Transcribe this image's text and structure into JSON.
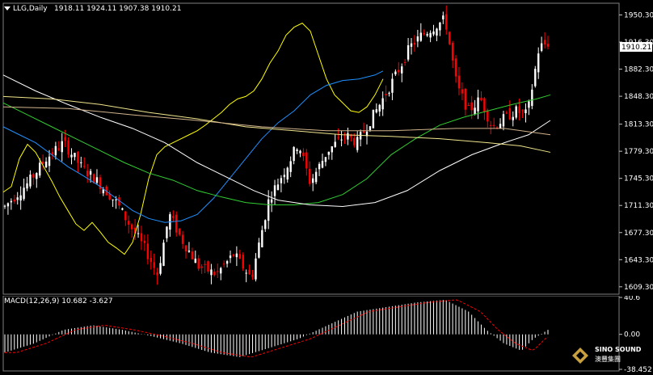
{
  "header": {
    "symbol": "LLG,Daily",
    "ohlc": "1918.11 1924.11 1907.38 1910.21"
  },
  "macd_header": {
    "label": "MACD(12,26,9) 10.682 -3.627"
  },
  "colors": {
    "background": "#000000",
    "up_candle": "#ffffff",
    "down_candle": "#ff0000",
    "ma_yellow": "#ffff00",
    "ma_blue": "#1e90ff",
    "ma_green": "#32cd32",
    "ma_white": "#ffffff",
    "ma_beige": "#f0e68c",
    "macd_signal": "#ff0000",
    "last_price_bg": "#ffffff"
  },
  "logo": {
    "text_top": "SINO SOUND",
    "text_bottom": "澳豐集團"
  },
  "chart_data": [
    {
      "type": "candlestick",
      "title": "LLG,Daily",
      "ylim": [
        1600,
        1965
      ],
      "y_ticks": [
        "1950.30",
        "1916.30",
        "1882.30",
        "1848.30",
        "1813.30",
        "1779.30",
        "1745.30",
        "1711.30",
        "1677.30",
        "1643.30",
        "1609.30"
      ],
      "last_price": "1910.21",
      "candle_count": 172,
      "moving_averages": [
        {
          "color": "#ffff00",
          "points": [
            [
              0,
              1728
            ],
            [
              10,
              1735
            ],
            [
              20,
              1770
            ],
            [
              30,
              1788
            ],
            [
              40,
              1778
            ],
            [
              50,
              1760
            ],
            [
              60,
              1742
            ],
            [
              70,
              1722
            ],
            [
              80,
              1705
            ],
            [
              90,
              1688
            ],
            [
              100,
              1680
            ],
            [
              110,
              1690
            ],
            [
              120,
              1678
            ],
            [
              130,
              1665
            ],
            [
              140,
              1658
            ],
            [
              150,
              1650
            ],
            [
              160,
              1665
            ],
            [
              170,
              1700
            ],
            [
              180,
              1745
            ],
            [
              190,
              1775
            ],
            [
              200,
              1785
            ],
            [
              210,
              1790
            ],
            [
              220,
              1795
            ],
            [
              230,
              1800
            ],
            [
              240,
              1805
            ],
            [
              250,
              1812
            ],
            [
              260,
              1820
            ],
            [
              270,
              1828
            ],
            [
              280,
              1838
            ],
            [
              290,
              1845
            ],
            [
              300,
              1848
            ],
            [
              310,
              1855
            ],
            [
              320,
              1870
            ],
            [
              330,
              1890
            ],
            [
              340,
              1905
            ],
            [
              350,
              1925
            ],
            [
              360,
              1935
            ],
            [
              370,
              1940
            ],
            [
              380,
              1930
            ],
            [
              390,
              1900
            ],
            [
              400,
              1870
            ],
            [
              410,
              1850
            ],
            [
              420,
              1840
            ],
            [
              430,
              1830
            ],
            [
              440,
              1828
            ],
            [
              450,
              1835
            ],
            [
              460,
              1850
            ],
            [
              470,
              1870
            ]
          ]
        },
        {
          "color": "#1e90ff",
          "points": [
            [
              0,
              1810
            ],
            [
              20,
              1800
            ],
            [
              40,
              1790
            ],
            [
              60,
              1775
            ],
            [
              80,
              1760
            ],
            [
              100,
              1748
            ],
            [
              120,
              1735
            ],
            [
              140,
              1720
            ],
            [
              160,
              1705
            ],
            [
              180,
              1695
            ],
            [
              200,
              1690
            ],
            [
              220,
              1692
            ],
            [
              240,
              1700
            ],
            [
              260,
              1720
            ],
            [
              280,
              1745
            ],
            [
              300,
              1770
            ],
            [
              320,
              1795
            ],
            [
              340,
              1815
            ],
            [
              360,
              1830
            ],
            [
              380,
              1850
            ],
            [
              400,
              1862
            ],
            [
              420,
              1868
            ],
            [
              440,
              1870
            ],
            [
              460,
              1875
            ],
            [
              470,
              1880
            ]
          ]
        },
        {
          "color": "#32cd32",
          "points": [
            [
              0,
              1840
            ],
            [
              30,
              1825
            ],
            [
              60,
              1810
            ],
            [
              90,
              1795
            ],
            [
              120,
              1780
            ],
            [
              150,
              1765
            ],
            [
              180,
              1752
            ],
            [
              210,
              1743
            ],
            [
              240,
              1730
            ],
            [
              270,
              1722
            ],
            [
              300,
              1715
            ],
            [
              330,
              1712
            ],
            [
              360,
              1712
            ],
            [
              390,
              1715
            ],
            [
              420,
              1725
            ],
            [
              450,
              1745
            ],
            [
              480,
              1775
            ],
            [
              510,
              1795
            ],
            [
              540,
              1812
            ],
            [
              570,
              1822
            ],
            [
              600,
              1830
            ],
            [
              630,
              1838
            ],
            [
              660,
              1845
            ],
            [
              677,
              1850
            ]
          ]
        },
        {
          "color": "#ffffff",
          "points": [
            [
              0,
              1875
            ],
            [
              40,
              1855
            ],
            [
              80,
              1838
            ],
            [
              120,
              1822
            ],
            [
              160,
              1808
            ],
            [
              200,
              1790
            ],
            [
              240,
              1765
            ],
            [
              280,
              1745
            ],
            [
              310,
              1730
            ],
            [
              340,
              1718
            ],
            [
              380,
              1712
            ],
            [
              420,
              1710
            ],
            [
              460,
              1715
            ],
            [
              500,
              1730
            ],
            [
              540,
              1755
            ],
            [
              580,
              1775
            ],
            [
              620,
              1790
            ],
            [
              650,
              1800
            ],
            [
              677,
              1818
            ]
          ]
        },
        {
          "color": "#f0e68c",
          "points": [
            [
              0,
              1848
            ],
            [
              60,
              1845
            ],
            [
              120,
              1838
            ],
            [
              180,
              1828
            ],
            [
              240,
              1820
            ],
            [
              300,
              1810
            ],
            [
              360,
              1805
            ],
            [
              420,
              1800
            ],
            [
              480,
              1798
            ],
            [
              540,
              1795
            ],
            [
              600,
              1790
            ],
            [
              640,
              1786
            ],
            [
              677,
              1778
            ]
          ]
        },
        {
          "color": "#d2b48c",
          "points": [
            [
              0,
              1835
            ],
            [
              80,
              1833
            ],
            [
              160,
              1825
            ],
            [
              240,
              1818
            ],
            [
              320,
              1810
            ],
            [
              400,
              1805
            ],
            [
              480,
              1805
            ],
            [
              560,
              1808
            ],
            [
              620,
              1808
            ],
            [
              677,
              1800
            ]
          ]
        }
      ]
    },
    {
      "type": "bar",
      "title": "MACD(12,26,9) 10.682 -3.627",
      "macd_value": "10.682",
      "signal_value": "-3.627",
      "ylim": [
        -38.452,
        40.6
      ],
      "y_ticks": [
        "40.6",
        "0.00",
        "-38.452"
      ],
      "histogram_count": 172
    }
  ]
}
